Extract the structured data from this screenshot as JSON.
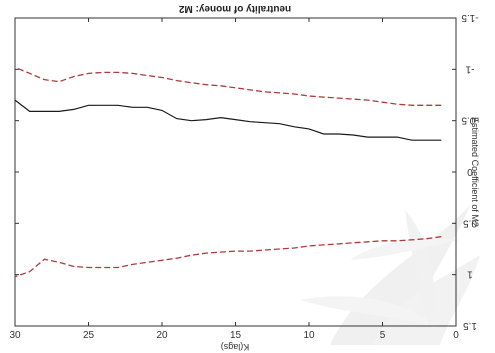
{
  "chart_data": {
    "type": "line",
    "title": "neutrality of money: M2",
    "xlabel": "K(lags)",
    "ylabel": "Estimated Coefficient of M2",
    "mirrored": true,
    "xlim": [
      0,
      30
    ],
    "ylim": [
      -1.5,
      1.5
    ],
    "xticks": [
      "30",
      "25",
      "20",
      "15",
      "10",
      "5",
      "0"
    ],
    "yticks": [
      "1.5",
      "1",
      "0.5",
      "0",
      "-0.5",
      "-1",
      "-1.5"
    ],
    "x": [
      1,
      2,
      3,
      4,
      5,
      6,
      7,
      8,
      9,
      10,
      11,
      12,
      13,
      14,
      15,
      16,
      17,
      18,
      19,
      20,
      21,
      22,
      23,
      24,
      25,
      26,
      27,
      28,
      29,
      30
    ],
    "series": [
      {
        "name": "",
        "style": "solid",
        "color": "#1a1a1a",
        "values": [
          -0.31,
          -0.31,
          -0.31,
          -0.34,
          -0.34,
          -0.34,
          -0.36,
          -0.37,
          -0.37,
          -0.42,
          -0.44,
          -0.47,
          -0.48,
          -0.49,
          -0.51,
          -0.53,
          -0.51,
          -0.5,
          -0.52,
          -0.6,
          -0.63,
          -0.63,
          -0.65,
          -0.65,
          -0.65,
          -0.61,
          -0.59,
          -0.59,
          -0.59,
          -0.7
        ]
      },
      {
        "name": "",
        "style": "dashed",
        "color": "#b03a3a",
        "values": [
          0.63,
          0.65,
          0.66,
          0.67,
          0.67,
          0.68,
          0.69,
          0.7,
          0.71,
          0.72,
          0.74,
          0.75,
          0.76,
          0.77,
          0.77,
          0.78,
          0.79,
          0.81,
          0.84,
          0.86,
          0.88,
          0.9,
          0.93,
          0.93,
          0.93,
          0.92,
          0.88,
          0.85,
          0.97,
          1.02
        ]
      },
      {
        "name": "",
        "style": "dashed",
        "color": "#b03a3a",
        "values": [
          -0.65,
          -0.65,
          -0.65,
          -0.66,
          -0.68,
          -0.7,
          -0.71,
          -0.72,
          -0.73,
          -0.74,
          -0.76,
          -0.77,
          -0.78,
          -0.8,
          -0.82,
          -0.84,
          -0.85,
          -0.87,
          -0.89,
          -0.92,
          -0.94,
          -0.96,
          -0.97,
          -0.97,
          -0.96,
          -0.93,
          -0.88,
          -0.9,
          -0.96,
          -1.02
        ]
      }
    ]
  },
  "colors": {
    "axis": "#333333",
    "background": "#ffffff",
    "watermark": "#e4e4e4"
  }
}
